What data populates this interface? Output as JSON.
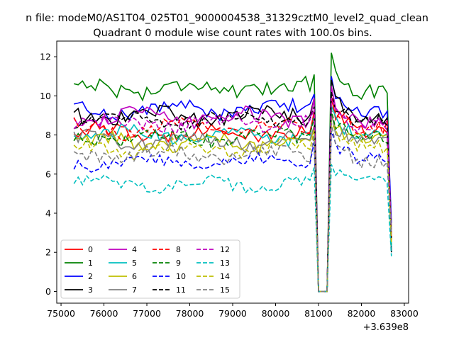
{
  "chart_data": {
    "type": "line",
    "suptitle": "n file: modeM0/AS1T04_025T01_9000004538_31329cztM0_level2_quad_clean",
    "title": "Quadrant 0 module wise count rates with 100.0s bins.",
    "xlabel": "",
    "ylabel": "",
    "x_offset_label": "+3.639e8",
    "xlim": [
      74900,
      83100
    ],
    "ylim": [
      -0.6,
      12.8
    ],
    "xticks": [
      75000,
      76000,
      77000,
      78000,
      79000,
      80000,
      81000,
      82000,
      83000
    ],
    "yticks": [
      0,
      2,
      4,
      6,
      8,
      10,
      12
    ],
    "x_start": 75300,
    "x_step": 100,
    "n_points": 75,
    "gap_start_index": 57,
    "gap_end_index": 59,
    "peak_index": 60,
    "final_drop_values": [
      3.2,
      2.5,
      3.5,
      2.0,
      2.8,
      2.3,
      3.0,
      3.2,
      2.7,
      2.4,
      3.0,
      2.6,
      2.9,
      1.8,
      2.5,
      3.0
    ],
    "legend_location": "lower-left",
    "series": [
      {
        "name": "0",
        "color": "#ff0000",
        "dash": "solid",
        "base": 8.1,
        "after": 8.2,
        "peak": 10.0,
        "amp": 0.35
      },
      {
        "name": "1",
        "color": "#008000",
        "dash": "solid",
        "base": 10.4,
        "after": 10.2,
        "peak": 12.2,
        "amp": 0.4
      },
      {
        "name": "2",
        "color": "#0000ff",
        "dash": "solid",
        "base": 9.3,
        "after": 9.2,
        "peak": 11.0,
        "amp": 0.35
      },
      {
        "name": "3",
        "color": "#000000",
        "dash": "solid",
        "base": 9.0,
        "after": 8.8,
        "peak": 10.8,
        "amp": 0.4
      },
      {
        "name": "4",
        "color": "#bf00bf",
        "dash": "solid",
        "base": 8.9,
        "after": 8.6,
        "peak": 10.5,
        "amp": 0.35
      },
      {
        "name": "5",
        "color": "#00bfbf",
        "dash": "solid",
        "base": 8.0,
        "after": 7.9,
        "peak": 9.5,
        "amp": 0.35
      },
      {
        "name": "6",
        "color": "#bfbf00",
        "dash": "solid",
        "base": 7.6,
        "after": 7.8,
        "peak": 9.0,
        "amp": 0.35
      },
      {
        "name": "7",
        "color": "#808080",
        "dash": "solid",
        "base": 7.7,
        "after": 7.6,
        "peak": 9.2,
        "amp": 0.35
      },
      {
        "name": "8",
        "color": "#ff0000",
        "dash": "dashed",
        "base": 8.3,
        "after": 8.4,
        "peak": 9.8,
        "amp": 0.35
      },
      {
        "name": "9",
        "color": "#008000",
        "dash": "dashed",
        "base": 7.9,
        "after": 7.9,
        "peak": 9.3,
        "amp": 0.35
      },
      {
        "name": "10",
        "color": "#0000ff",
        "dash": "dashed",
        "base": 6.6,
        "after": 6.8,
        "peak": 8.2,
        "amp": 0.3
      },
      {
        "name": "11",
        "color": "#000000",
        "dash": "dashed",
        "base": 8.8,
        "after": 8.7,
        "peak": 10.2,
        "amp": 0.35
      },
      {
        "name": "12",
        "color": "#bf00bf",
        "dash": "dashed",
        "base": 8.6,
        "after": 8.4,
        "peak": 9.9,
        "amp": 0.35
      },
      {
        "name": "13",
        "color": "#00bfbf",
        "dash": "dashed",
        "base": 5.5,
        "after": 5.6,
        "peak": 6.5,
        "amp": 0.3
      },
      {
        "name": "14",
        "color": "#bfbf00",
        "dash": "dashed",
        "base": 7.3,
        "after": 7.4,
        "peak": 8.6,
        "amp": 0.35
      },
      {
        "name": "15",
        "color": "#808080",
        "dash": "dashed",
        "base": 7.0,
        "after": 6.6,
        "peak": 8.6,
        "amp": 0.35
      }
    ]
  }
}
